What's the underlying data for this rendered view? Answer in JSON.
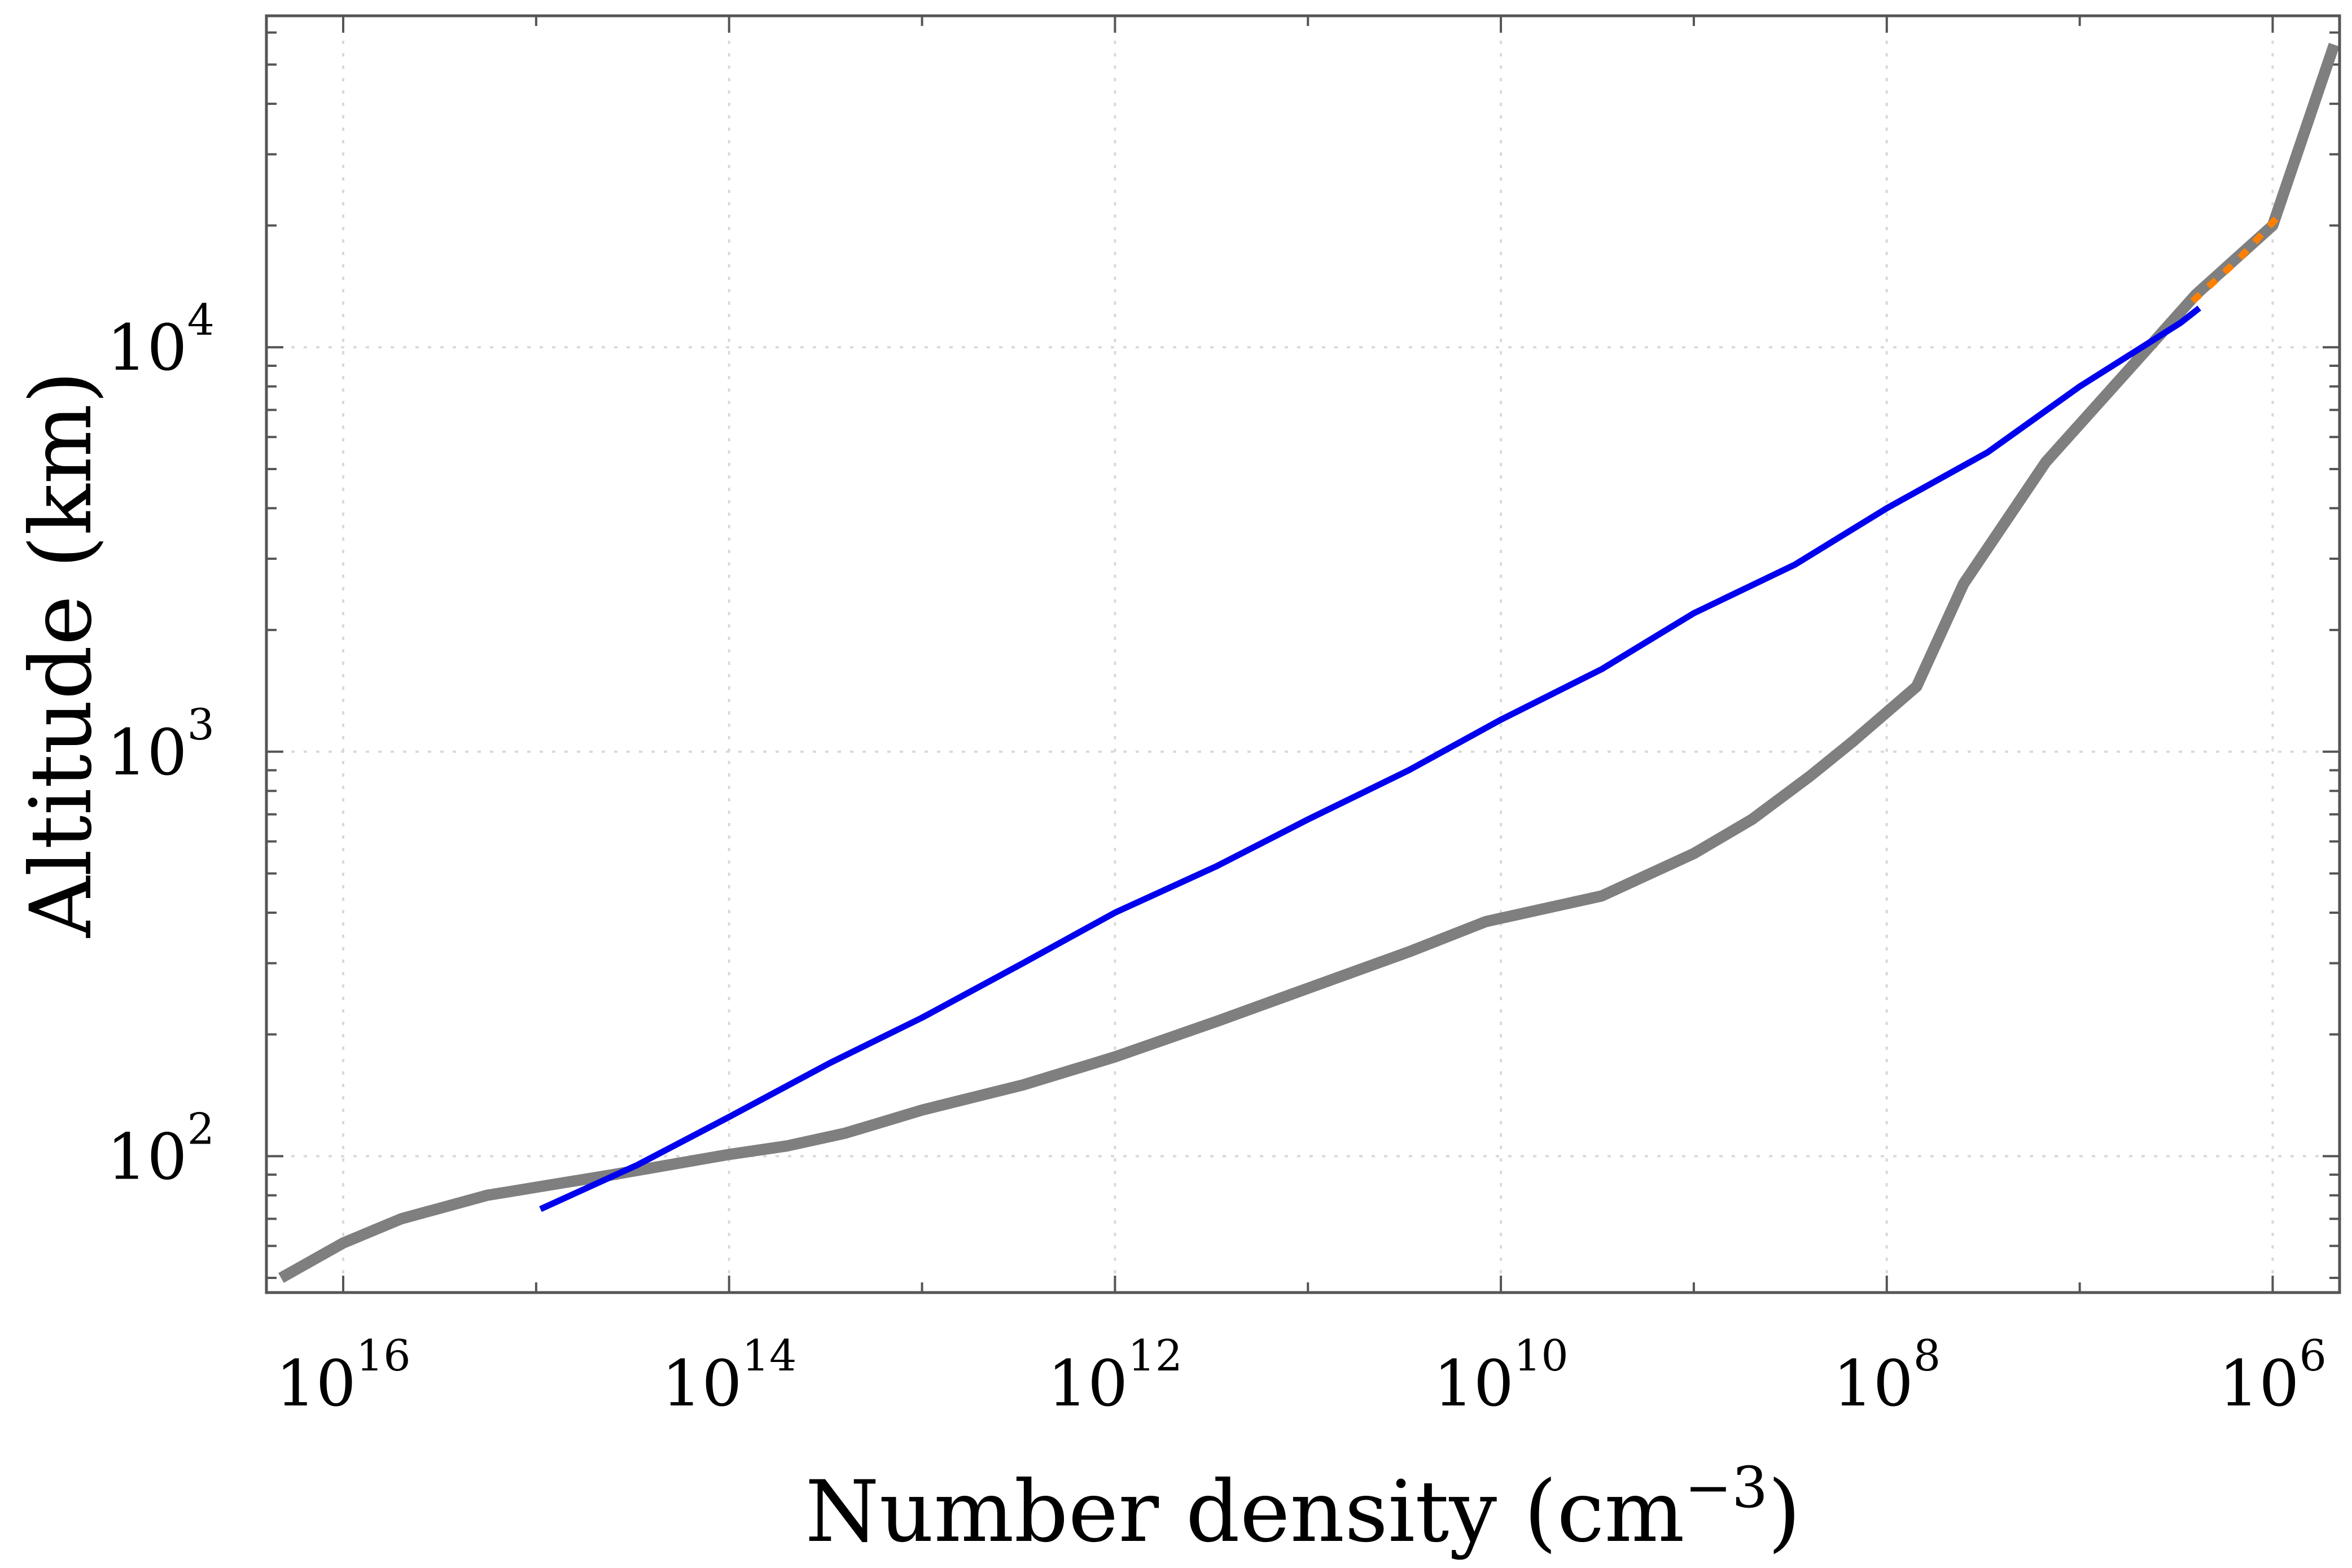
{
  "chart_data": {
    "type": "line",
    "title": "",
    "xlabel": "Number density (cm",
    "xlabel_sup": "−3",
    "xlabel_close": ")",
    "ylabel": "Altitude (km)",
    "x_scale": "log",
    "y_scale": "log",
    "x_reversed": true,
    "xlim": [
      2.5e+16,
      450000.0
    ],
    "ylim": [
      46,
      66000
    ],
    "x_ticks": [
      {
        "value": 1e+16,
        "base": "10",
        "exp": "16"
      },
      {
        "value": 100000000000000.0,
        "base": "10",
        "exp": "14"
      },
      {
        "value": 1000000000000.0,
        "base": "10",
        "exp": "12"
      },
      {
        "value": 10000000000.0,
        "base": "10",
        "exp": "10"
      },
      {
        "value": 100000000.0,
        "base": "10",
        "exp": "8"
      },
      {
        "value": 1000000.0,
        "base": "10",
        "exp": "6"
      }
    ],
    "y_ticks": [
      {
        "value": 100,
        "base": "10",
        "exp": "2"
      },
      {
        "value": 1000,
        "base": "10",
        "exp": "3"
      },
      {
        "value": 10000,
        "base": "10",
        "exp": "4"
      }
    ],
    "grid": true,
    "legend": "none",
    "series": [
      {
        "color": "#0000ee",
        "style": "solid",
        "points": [
          [
            950000000000000.0,
            74
          ],
          [
            300000000000000.0,
            95
          ],
          [
            100000000000000.0,
            125
          ],
          [
            30000000000000.0,
            170
          ],
          [
            10000000000000.0,
            220
          ],
          [
            3000000000000.0,
            300
          ],
          [
            1000000000000.0,
            400
          ],
          [
            300000000000.0,
            520
          ],
          [
            100000000000.0,
            680
          ],
          [
            30000000000.0,
            900
          ],
          [
            10000000000.0,
            1200
          ],
          [
            3000000000.0,
            1600
          ],
          [
            1000000000.0,
            2200
          ],
          [
            300000000.0,
            2900
          ],
          [
            100000000.0,
            4000
          ],
          [
            30000000.0,
            5500
          ],
          [
            10000000.0,
            8000
          ],
          [
            3000000.0,
            11500
          ],
          [
            2400000.0,
            12500
          ]
        ]
      },
      {
        "color": "#ff8000",
        "style": "dotted",
        "points": [
          [
            2600000.0,
            13000
          ],
          [
            1500000.0,
            16500
          ],
          [
            900000.0,
            21500
          ]
        ]
      },
      {
        "color": "#7f7f7f",
        "style": "solid",
        "points": [
          [
            2.1e+16,
            50
          ],
          [
            1e+16,
            61
          ],
          [
            5000000000000000.0,
            70
          ],
          [
            1800000000000000.0,
            80
          ],
          [
            400000000000000.0,
            90
          ],
          [
            100000000000000.0,
            101
          ],
          [
            50000000000000.0,
            106
          ],
          [
            25000000000000.0,
            114
          ],
          [
            10000000000000.0,
            130
          ],
          [
            3000000000000.0,
            150
          ],
          [
            1000000000000.0,
            176
          ],
          [
            300000000000.0,
            215
          ],
          [
            100000000000.0,
            260
          ],
          [
            30000000000.0,
            320
          ],
          [
            12000000000.0,
            380
          ],
          [
            3000000000.0,
            440
          ],
          [
            1000000000.0,
            560
          ],
          [
            500000000.0,
            680
          ],
          [
            250000000.0,
            870
          ],
          [
            150000000.0,
            1060
          ],
          [
            70000000.0,
            1450
          ],
          [
            40000000.0,
            2600
          ],
          [
            15000000.0,
            5200
          ],
          [
            4000000.0,
            10500
          ],
          [
            2500000.0,
            13500
          ],
          [
            1000000.0,
            20000
          ],
          [
            480000.0,
            56000
          ]
        ]
      }
    ]
  }
}
